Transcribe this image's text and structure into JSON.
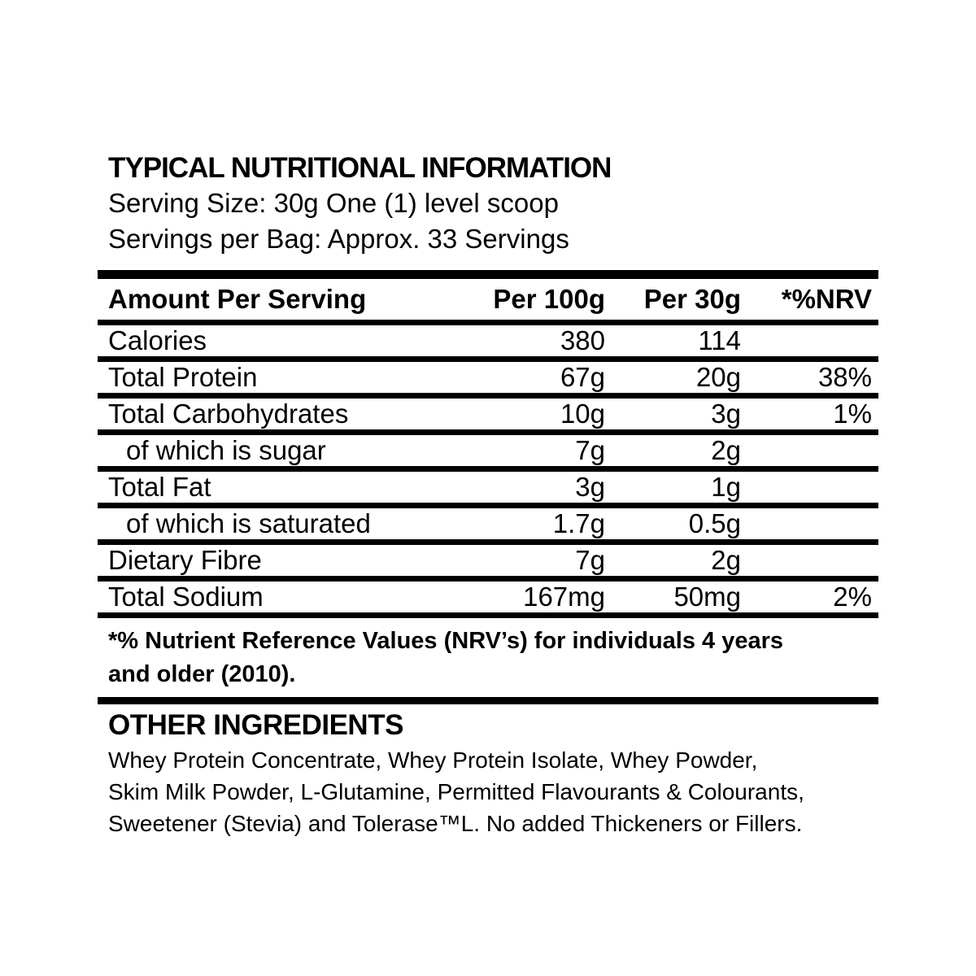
{
  "page": {
    "title": "TYPICAL NUTRITIONAL INFORMATION",
    "serving_size": "Serving Size: 30g One (1) level scoop",
    "servings_per_bag": "Servings per Bag: Approx. 33 Servings"
  },
  "table": {
    "headers": {
      "amount": "Amount Per Serving",
      "per100g": "Per 100g",
      "per30g": "Per 30g",
      "nrv": "*%NRV"
    },
    "rows": [
      {
        "label": "Calories",
        "per100g": "380",
        "per30g": "114",
        "nrv": ""
      },
      {
        "label": "Total Protein",
        "per100g": "67g",
        "per30g": "20g",
        "nrv": "38%"
      },
      {
        "label": "Total Carbohydrates",
        "per100g": "10g",
        "per30g": "3g",
        "nrv": "1%"
      },
      {
        "label": "of which is sugar",
        "per100g": "7g",
        "per30g": "2g",
        "nrv": ""
      },
      {
        "label": "Total Fat",
        "per100g": "3g",
        "per30g": "1g",
        "nrv": ""
      },
      {
        "label": "of which is saturated",
        "per100g": "1.7g",
        "per30g": "0.5g",
        "nrv": ""
      },
      {
        "label": "Dietary Fibre",
        "per100g": "7g",
        "per30g": "2g",
        "nrv": ""
      },
      {
        "label": "Total Sodium",
        "per100g": "167mg",
        "per30g": "50mg",
        "nrv": "2%"
      }
    ]
  },
  "footnote": {
    "line1": "*% Nutrient Reference Values (NRV’s) for individuals 4 years",
    "line2": "and older (2010)."
  },
  "other_ingredients": {
    "heading": "OTHER INGREDIENTS",
    "lines": [
      "Whey Protein Concentrate, Whey Protein Isolate, Whey Powder,",
      "Skim Milk Powder, L-Glutamine, Permitted Flavourants & Colourants,",
      "Sweetener (Stevia) and Tolerase™L. No added Thickeners or Fillers."
    ]
  },
  "colors": {
    "text": "#000000",
    "background": "#ffffff"
  }
}
